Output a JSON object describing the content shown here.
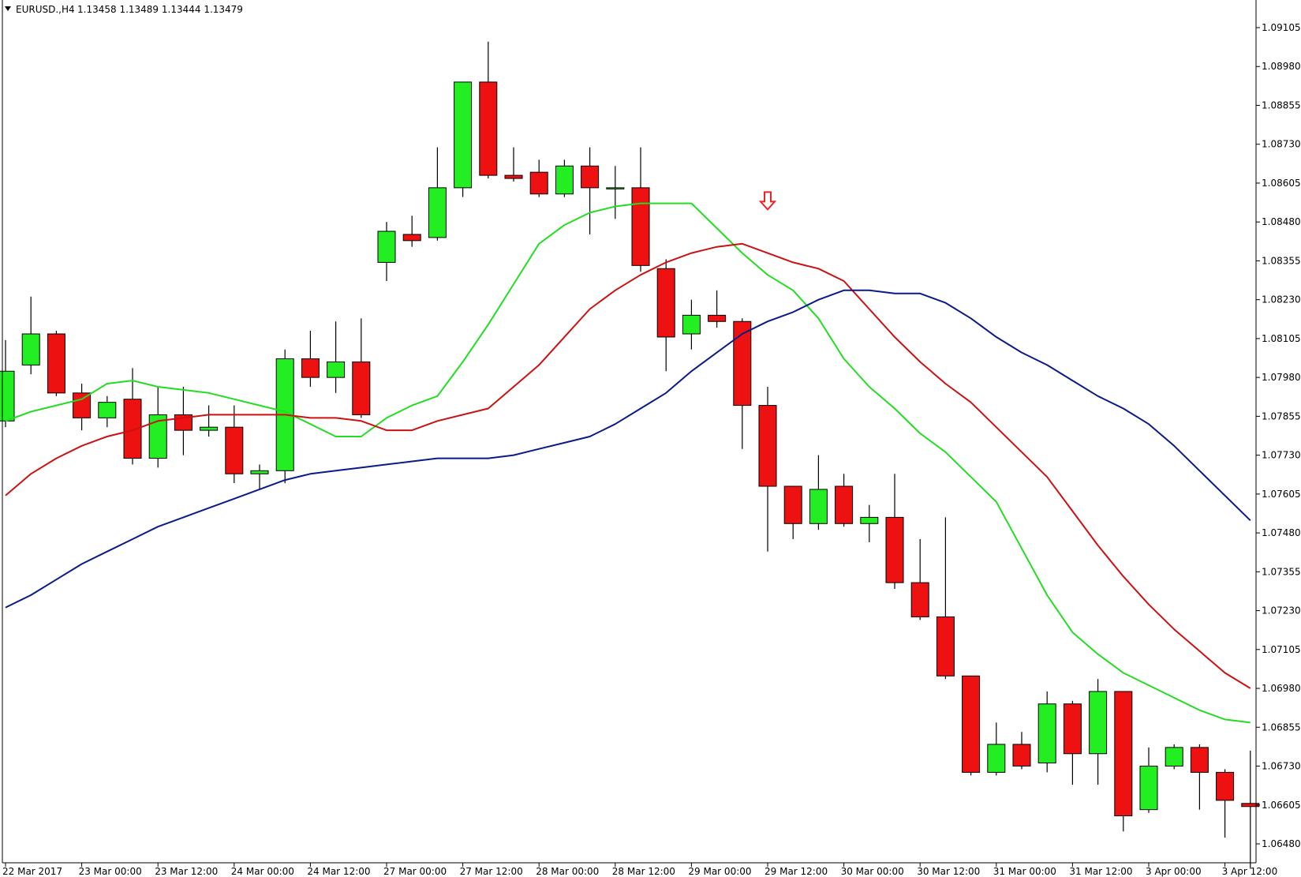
{
  "header": {
    "symbol": "EURUSD.,H4",
    "ohlc": "1.13458 1.13489 1.13444 1.13479"
  },
  "colors": {
    "bull": "#22ee22",
    "bear": "#ee1111",
    "ma_fast": "#22dd22",
    "ma_mid": "#cc1111",
    "ma_slow": "#0a1a8a",
    "signal_arrow": "#ee2222"
  },
  "chart_data": {
    "type": "candlestick",
    "ylim": [
      1.0638,
      1.0926
    ],
    "y_ticks": [
      "1.09105",
      "1.08980",
      "1.08855",
      "1.08730",
      "1.08605",
      "1.08480",
      "1.08355",
      "1.08230",
      "1.08105",
      "1.07980",
      "1.07855",
      "1.07730",
      "1.07605",
      "1.07480",
      "1.07355",
      "1.07230",
      "1.07105",
      "1.06980",
      "1.06855",
      "1.06730",
      "1.06605",
      "1.06480"
    ],
    "x_ticks": [
      {
        "label": "22 Mar 2017",
        "index": 0
      },
      {
        "label": "23 Mar 00:00",
        "index": 3
      },
      {
        "label": "23 Mar 12:00",
        "index": 6
      },
      {
        "label": "24 Mar 00:00",
        "index": 9
      },
      {
        "label": "24 Mar 12:00",
        "index": 12
      },
      {
        "label": "27 Mar 00:00",
        "index": 15
      },
      {
        "label": "27 Mar 12:00",
        "index": 18
      },
      {
        "label": "28 Mar 00:00",
        "index": 21
      },
      {
        "label": "28 Mar 12:00",
        "index": 24
      },
      {
        "label": "29 Mar 00:00",
        "index": 27
      },
      {
        "label": "29 Mar 12:00",
        "index": 30
      },
      {
        "label": "30 Mar 00:00",
        "index": 33
      },
      {
        "label": "30 Mar 12:00",
        "index": 36
      },
      {
        "label": "31 Mar 00:00",
        "index": 39
      },
      {
        "label": "31 Mar 12:00",
        "index": 42
      },
      {
        "label": "3 Apr 00:00",
        "index": 45
      },
      {
        "label": "3 Apr 12:00",
        "index": 48
      }
    ],
    "candles": [
      {
        "o": 1.0784,
        "h": 1.081,
        "l": 1.0782,
        "c": 1.08
      },
      {
        "o": 1.0802,
        "h": 1.0824,
        "l": 1.0799,
        "c": 1.0812
      },
      {
        "o": 1.0812,
        "h": 1.0813,
        "l": 1.0792,
        "c": 1.0793
      },
      {
        "o": 1.0793,
        "h": 1.0796,
        "l": 1.0781,
        "c": 1.0785
      },
      {
        "o": 1.0785,
        "h": 1.0792,
        "l": 1.0782,
        "c": 1.079
      },
      {
        "o": 1.0791,
        "h": 1.0801,
        "l": 1.077,
        "c": 1.0772
      },
      {
        "o": 1.0772,
        "h": 1.0795,
        "l": 1.0769,
        "c": 1.0786
      },
      {
        "o": 1.0786,
        "h": 1.0795,
        "l": 1.0773,
        "c": 1.0781
      },
      {
        "o": 1.0781,
        "h": 1.0789,
        "l": 1.0779,
        "c": 1.0782
      },
      {
        "o": 1.0782,
        "h": 1.0789,
        "l": 1.0764,
        "c": 1.0767
      },
      {
        "o": 1.0767,
        "h": 1.077,
        "l": 1.0762,
        "c": 1.0768
      },
      {
        "o": 1.0768,
        "h": 1.0807,
        "l": 1.0764,
        "c": 1.0804
      },
      {
        "o": 1.0804,
        "h": 1.0813,
        "l": 1.0795,
        "c": 1.0798
      },
      {
        "o": 1.0798,
        "h": 1.0816,
        "l": 1.0793,
        "c": 1.0803
      },
      {
        "o": 1.0803,
        "h": 1.0817,
        "l": 1.0785,
        "c": 1.0786
      },
      {
        "o": 1.0835,
        "h": 1.0848,
        "l": 1.0829,
        "c": 1.0845
      },
      {
        "o": 1.0844,
        "h": 1.085,
        "l": 1.084,
        "c": 1.0842
      },
      {
        "o": 1.0843,
        "h": 1.0872,
        "l": 1.0842,
        "c": 1.0859
      },
      {
        "o": 1.0859,
        "h": 1.0893,
        "l": 1.0856,
        "c": 1.0893
      },
      {
        "o": 1.0893,
        "h": 1.0906,
        "l": 1.0862,
        "c": 1.0863
      },
      {
        "o": 1.0863,
        "h": 1.0872,
        "l": 1.0861,
        "c": 1.0862
      },
      {
        "o": 1.0864,
        "h": 1.0868,
        "l": 1.0856,
        "c": 1.0857
      },
      {
        "o": 1.0857,
        "h": 1.0868,
        "l": 1.0856,
        "c": 1.0866
      },
      {
        "o": 1.0866,
        "h": 1.0872,
        "l": 1.0844,
        "c": 1.0859
      },
      {
        "o": 1.0859,
        "h": 1.0866,
        "l": 1.0849,
        "c": 1.0859
      },
      {
        "o": 1.0859,
        "h": 1.0872,
        "l": 1.0832,
        "c": 1.0834
      },
      {
        "o": 1.0833,
        "h": 1.0836,
        "l": 1.08,
        "c": 1.0811
      },
      {
        "o": 1.0812,
        "h": 1.0823,
        "l": 1.0807,
        "c": 1.0818
      },
      {
        "o": 1.0818,
        "h": 1.0826,
        "l": 1.0814,
        "c": 1.0816
      },
      {
        "o": 1.0816,
        "h": 1.0817,
        "l": 1.0775,
        "c": 1.0789
      },
      {
        "o": 1.0789,
        "h": 1.0795,
        "l": 1.0742,
        "c": 1.0763
      },
      {
        "o": 1.0763,
        "h": 1.0763,
        "l": 1.0746,
        "c": 1.0751
      },
      {
        "o": 1.0751,
        "h": 1.0773,
        "l": 1.0749,
        "c": 1.0762
      },
      {
        "o": 1.0763,
        "h": 1.0767,
        "l": 1.075,
        "c": 1.0751
      },
      {
        "o": 1.0751,
        "h": 1.0757,
        "l": 1.0745,
        "c": 1.0753
      },
      {
        "o": 1.0753,
        "h": 1.0767,
        "l": 1.073,
        "c": 1.0732
      },
      {
        "o": 1.0732,
        "h": 1.0746,
        "l": 1.072,
        "c": 1.0721
      },
      {
        "o": 1.0721,
        "h": 1.0753,
        "l": 1.0701,
        "c": 1.0702
      },
      {
        "o": 1.0702,
        "h": 1.0702,
        "l": 1.067,
        "c": 1.0671
      },
      {
        "o": 1.0671,
        "h": 1.0687,
        "l": 1.067,
        "c": 1.068
      },
      {
        "o": 1.068,
        "h": 1.0684,
        "l": 1.0672,
        "c": 1.0673
      },
      {
        "o": 1.0674,
        "h": 1.0697,
        "l": 1.0671,
        "c": 1.0693
      },
      {
        "o": 1.0693,
        "h": 1.0694,
        "l": 1.0667,
        "c": 1.0677
      },
      {
        "o": 1.0677,
        "h": 1.0701,
        "l": 1.0667,
        "c": 1.0697
      },
      {
        "o": 1.0697,
        "h": 1.0697,
        "l": 1.0652,
        "c": 1.0657
      },
      {
        "o": 1.0659,
        "h": 1.0679,
        "l": 1.0658,
        "c": 1.0673
      },
      {
        "o": 1.0673,
        "h": 1.068,
        "l": 1.0672,
        "c": 1.0679
      },
      {
        "o": 1.0679,
        "h": 1.068,
        "l": 1.0659,
        "c": 1.0671
      },
      {
        "o": 1.0671,
        "h": 1.0672,
        "l": 1.065,
        "c": 1.0662
      },
      {
        "o": 1.0661,
        "h": 1.0678,
        "l": 1.064,
        "c": 1.066
      }
    ],
    "series": [
      {
        "role": "ma_fast",
        "values": [
          1.0784,
          1.0787,
          1.0789,
          1.0791,
          1.0796,
          1.0797,
          1.0795,
          1.0794,
          1.0793,
          1.0791,
          1.0789,
          1.0787,
          1.0783,
          1.0779,
          1.0779,
          1.0785,
          1.0789,
          1.0792,
          1.0803,
          1.0815,
          1.0828,
          1.0841,
          1.0847,
          1.0851,
          1.0853,
          1.0854,
          1.0854,
          1.0854,
          1.0846,
          1.0838,
          1.0831,
          1.0826,
          1.0817,
          1.0804,
          1.0795,
          1.0788,
          1.078,
          1.0774,
          1.0766,
          1.0758,
          1.0743,
          1.0728,
          1.0716,
          1.0709,
          1.0703,
          1.0699,
          1.0695,
          1.0691,
          1.0688,
          1.0687
        ]
      },
      {
        "role": "ma_mid",
        "values": [
          1.076,
          1.0767,
          1.0772,
          1.0776,
          1.0779,
          1.0781,
          1.0784,
          1.0785,
          1.0786,
          1.0786,
          1.0786,
          1.0786,
          1.0785,
          1.0785,
          1.0784,
          1.0781,
          1.0781,
          1.0784,
          1.0786,
          1.0788,
          1.0795,
          1.0802,
          1.0811,
          1.082,
          1.0826,
          1.0831,
          1.0835,
          1.0838,
          1.084,
          1.0841,
          1.0838,
          1.0835,
          1.0833,
          1.0829,
          1.082,
          1.0811,
          1.0803,
          1.0796,
          1.079,
          1.0782,
          1.0774,
          1.0766,
          1.0755,
          1.0744,
          1.0734,
          1.0725,
          1.0717,
          1.071,
          1.0703,
          1.0698
        ]
      },
      {
        "role": "ma_slow",
        "values": [
          1.0724,
          1.0728,
          1.0733,
          1.0738,
          1.0742,
          1.0746,
          1.075,
          1.0753,
          1.0756,
          1.0759,
          1.0762,
          1.0765,
          1.0767,
          1.0768,
          1.0769,
          1.077,
          1.0771,
          1.0772,
          1.0772,
          1.0772,
          1.0773,
          1.0775,
          1.0777,
          1.0779,
          1.0783,
          1.0788,
          1.0793,
          1.08,
          1.0806,
          1.0812,
          1.0816,
          1.0819,
          1.0823,
          1.0826,
          1.0826,
          1.0825,
          1.0825,
          1.0822,
          1.0817,
          1.0811,
          1.0806,
          1.0802,
          1.0797,
          1.0792,
          1.0788,
          1.0783,
          1.0776,
          1.0768,
          1.076,
          1.0752
        ]
      }
    ],
    "signal_arrow": {
      "index": 30,
      "direction": "down",
      "price": 1.0852
    }
  }
}
